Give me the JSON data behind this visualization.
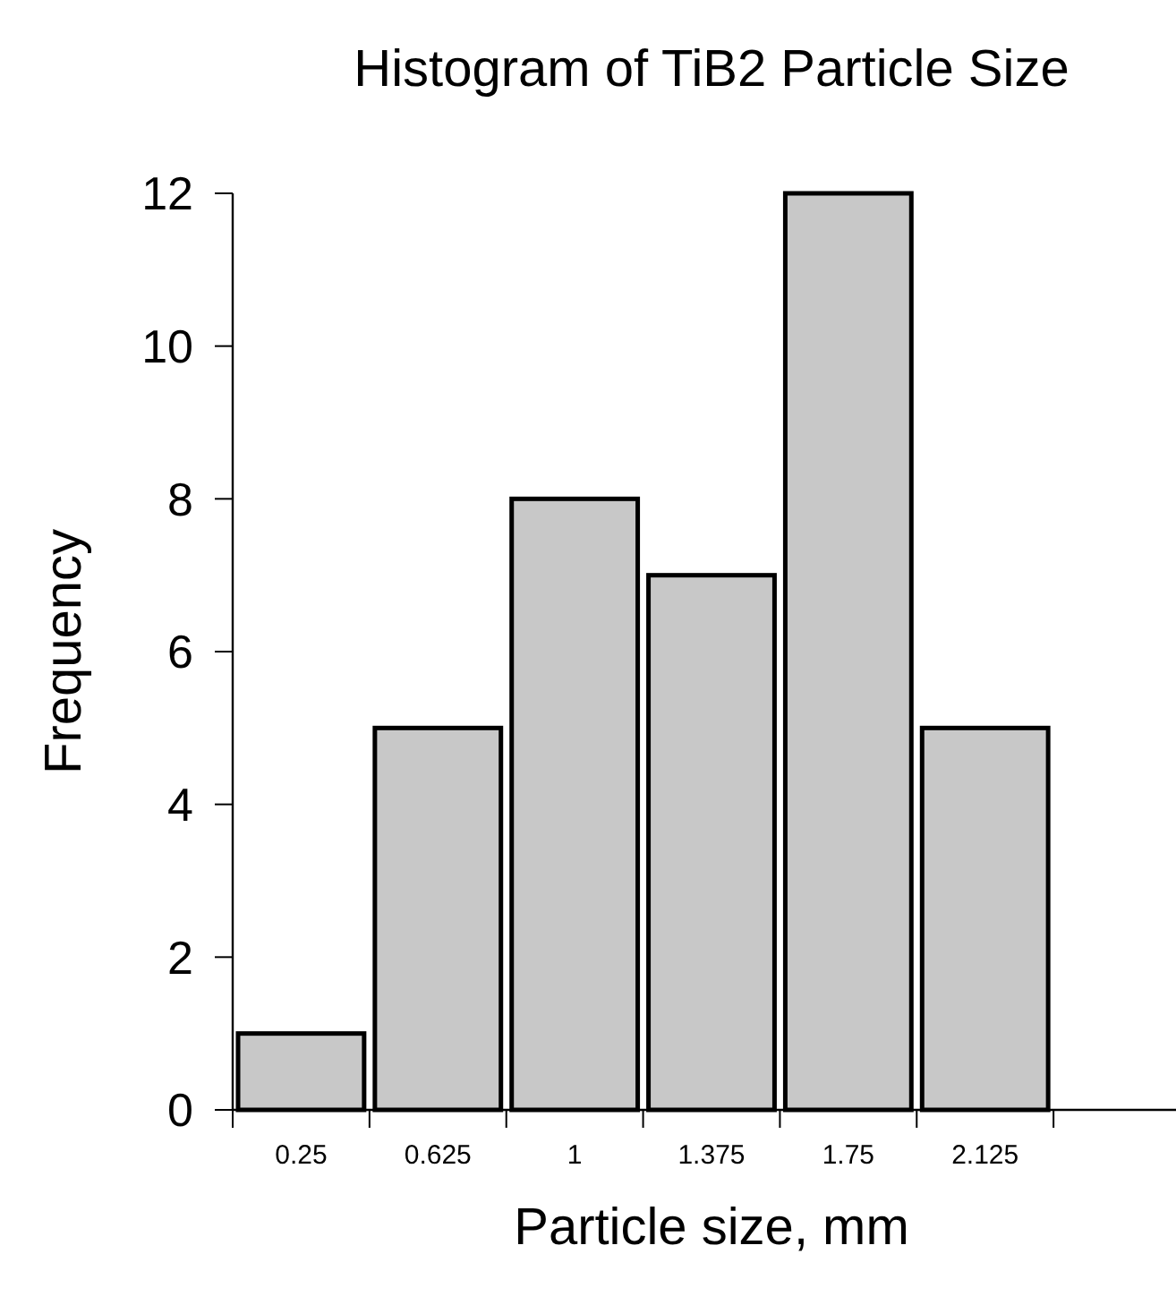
{
  "chart_data": {
    "type": "histogram",
    "title": "Histogram of TiB2 Particle Size",
    "xlabel": "Particle size, mm",
    "ylabel": "Frequency",
    "bins": [
      0.0625,
      0.4375,
      0.8125,
      1.1875,
      1.5625,
      1.9375,
      2.3125
    ],
    "values": [
      1,
      5,
      8,
      7,
      12,
      5
    ],
    "color": "#c8c8c8",
    "xlim": [
      0.0625,
      2.6875
    ],
    "xticks": [
      0.25,
      0.625,
      1,
      1.375,
      1.75,
      2.125,
      {
        "value": 0.0625,
        "label": null
      },
      {
        "value": 0.4375,
        "label": null
      },
      {
        "value": 0.8125,
        "label": null
      },
      {
        "value": 1.1875,
        "label": null
      },
      {
        "value": 1.5625,
        "label": null
      },
      {
        "value": 1.9375,
        "label": null
      },
      {
        "value": 2.3125,
        "label": null
      },
      {
        "value": 2.6875,
        "label": null
      }
    ],
    "ylim": [
      0,
      12
    ],
    "yticks": [
      0,
      2,
      4,
      6,
      8,
      10,
      12
    ],
    "grid": false
  }
}
